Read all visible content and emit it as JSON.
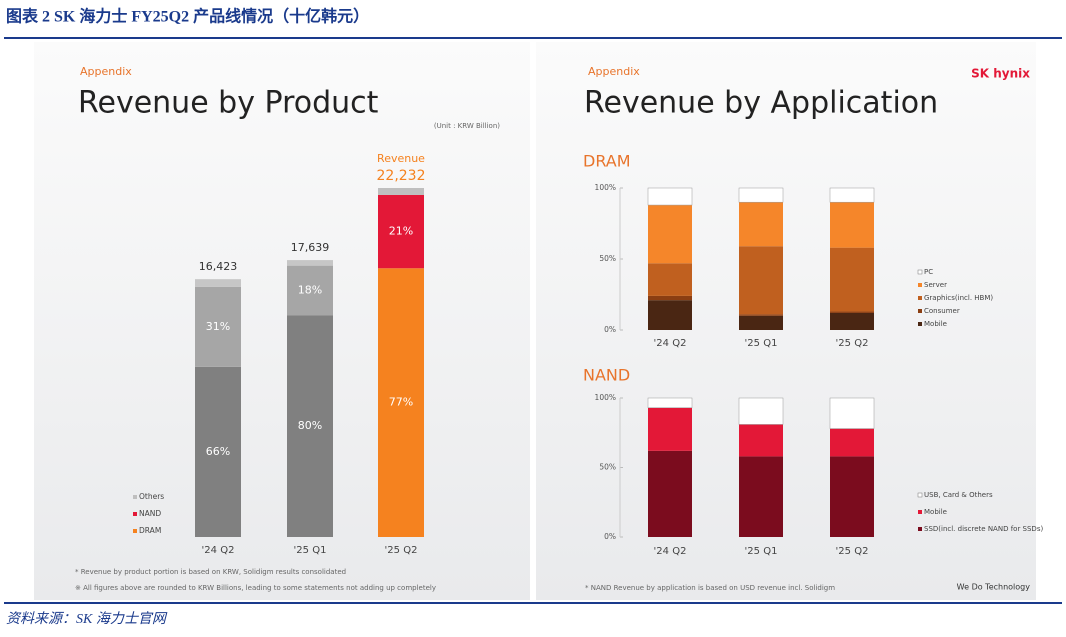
{
  "header": {
    "title": "图表 2   SK 海力士 FY25Q2 产品线情况（十亿韩元）"
  },
  "source": "资料来源：SK 海力士官网",
  "slides": [
    {
      "tag": "Appendix",
      "title": "Revenue by Product",
      "unit": "(Unit : KRW Billion)",
      "notes": [
        "* Revenue by product portion is based on KRW, Solidigm results consolidated",
        "※ All figures above are rounded to KRW Billions, leading to some statements not adding up completely"
      ]
    },
    {
      "tag": "Appendix",
      "title": "Revenue by Application",
      "brand": "SK hynix",
      "slogan": "We Do Technology",
      "notes": [
        "* NAND Revenue by application is based on USD revenue incl. Solidigm"
      ]
    }
  ],
  "chart_data": [
    {
      "type": "share_bar",
      "categories": [
        "'24 Q2",
        "'25 Q1",
        "'25 Q2"
      ],
      "totals": {
        "label": "Revenue",
        "values": [
          16423,
          17639,
          22232
        ],
        "value_labels": [
          "16,423",
          "17,639",
          "22,232"
        ]
      },
      "highlight_category": "'25 Q2",
      "series": [
        {
          "name": "DRAM",
          "color": "#f5821f",
          "muted_color": "#808080",
          "values": [
            66,
            80,
            77
          ],
          "value_labels": [
            "66%",
            "80%",
            "77%"
          ]
        },
        {
          "name": "NAND",
          "color": "#e31837",
          "muted_color": "#a6a6a6",
          "values": [
            31,
            18,
            21
          ],
          "value_labels": [
            "31%",
            "18%",
            "21%"
          ]
        },
        {
          "name": "Others",
          "color": "#bfbfbf",
          "muted_color": "#c6c6c6",
          "values": [
            3,
            2,
            2
          ]
        }
      ]
    },
    {
      "type": "percent_bar",
      "title": "DRAM",
      "categories": [
        "'24 Q2",
        "'25 Q1",
        "'25 Q2"
      ],
      "ylim": [
        0,
        100
      ],
      "yticks": [
        {
          "value": 0,
          "label": "0%"
        },
        {
          "value": 50,
          "label": "50%"
        },
        {
          "value": 100,
          "label": "100%"
        }
      ],
      "series": [
        {
          "name": "Mobile",
          "color": "#4a2613",
          "values": [
            21,
            10,
            12
          ]
        },
        {
          "name": "Consumer",
          "color": "#8b3e12",
          "values": [
            3,
            1,
            1
          ]
        },
        {
          "name": "Graphics(incl. HBM)",
          "color": "#c0601f",
          "values": [
            23,
            48,
            45
          ]
        },
        {
          "name": "Server",
          "color": "#f5862a",
          "values": [
            41,
            31,
            32
          ]
        },
        {
          "name": "PC",
          "color": "#ffffff",
          "values": [
            12,
            10,
            10
          ]
        }
      ]
    },
    {
      "type": "percent_bar",
      "title": "NAND",
      "categories": [
        "'24 Q2",
        "'25 Q1",
        "'25 Q2"
      ],
      "ylim": [
        0,
        100
      ],
      "yticks": [
        {
          "value": 0,
          "label": "0%"
        },
        {
          "value": 50,
          "label": "50%"
        },
        {
          "value": 100,
          "label": "100%"
        }
      ],
      "series": [
        {
          "name": "SSD(incl. discrete NAND for SSDs)",
          "color": "#7b0c1e",
          "values": [
            62,
            58,
            58
          ]
        },
        {
          "name": "Mobile",
          "color": "#e31837",
          "values": [
            31,
            23,
            20
          ]
        },
        {
          "name": "USB, Card & Others",
          "color": "#ffffff",
          "values": [
            7,
            19,
            22
          ]
        }
      ]
    }
  ]
}
